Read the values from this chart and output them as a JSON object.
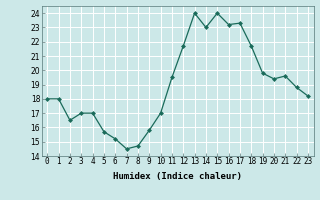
{
  "x": [
    0,
    1,
    2,
    3,
    4,
    5,
    6,
    7,
    8,
    9,
    10,
    11,
    12,
    13,
    14,
    15,
    16,
    17,
    18,
    19,
    20,
    21,
    22,
    23
  ],
  "y": [
    18,
    18,
    16.5,
    17,
    17,
    15.7,
    15.2,
    14.5,
    14.7,
    15.8,
    17,
    19.5,
    21.7,
    24,
    23,
    24,
    23.2,
    23.3,
    21.7,
    19.8,
    19.4,
    19.6,
    18.8,
    18.2
  ],
  "line_color": "#1a6b5a",
  "marker": "D",
  "marker_size": 2,
  "bg_color": "#cce8e8",
  "grid_color": "#ffffff",
  "xlabel": "Humidex (Indice chaleur)",
  "xlim": [
    -0.5,
    23.5
  ],
  "ylim": [
    14,
    24.5
  ],
  "yticks": [
    14,
    15,
    16,
    17,
    18,
    19,
    20,
    21,
    22,
    23,
    24
  ],
  "xticks": [
    0,
    1,
    2,
    3,
    4,
    5,
    6,
    7,
    8,
    9,
    10,
    11,
    12,
    13,
    14,
    15,
    16,
    17,
    18,
    19,
    20,
    21,
    22,
    23
  ],
  "label_fontsize": 6.5,
  "tick_fontsize": 5.5
}
